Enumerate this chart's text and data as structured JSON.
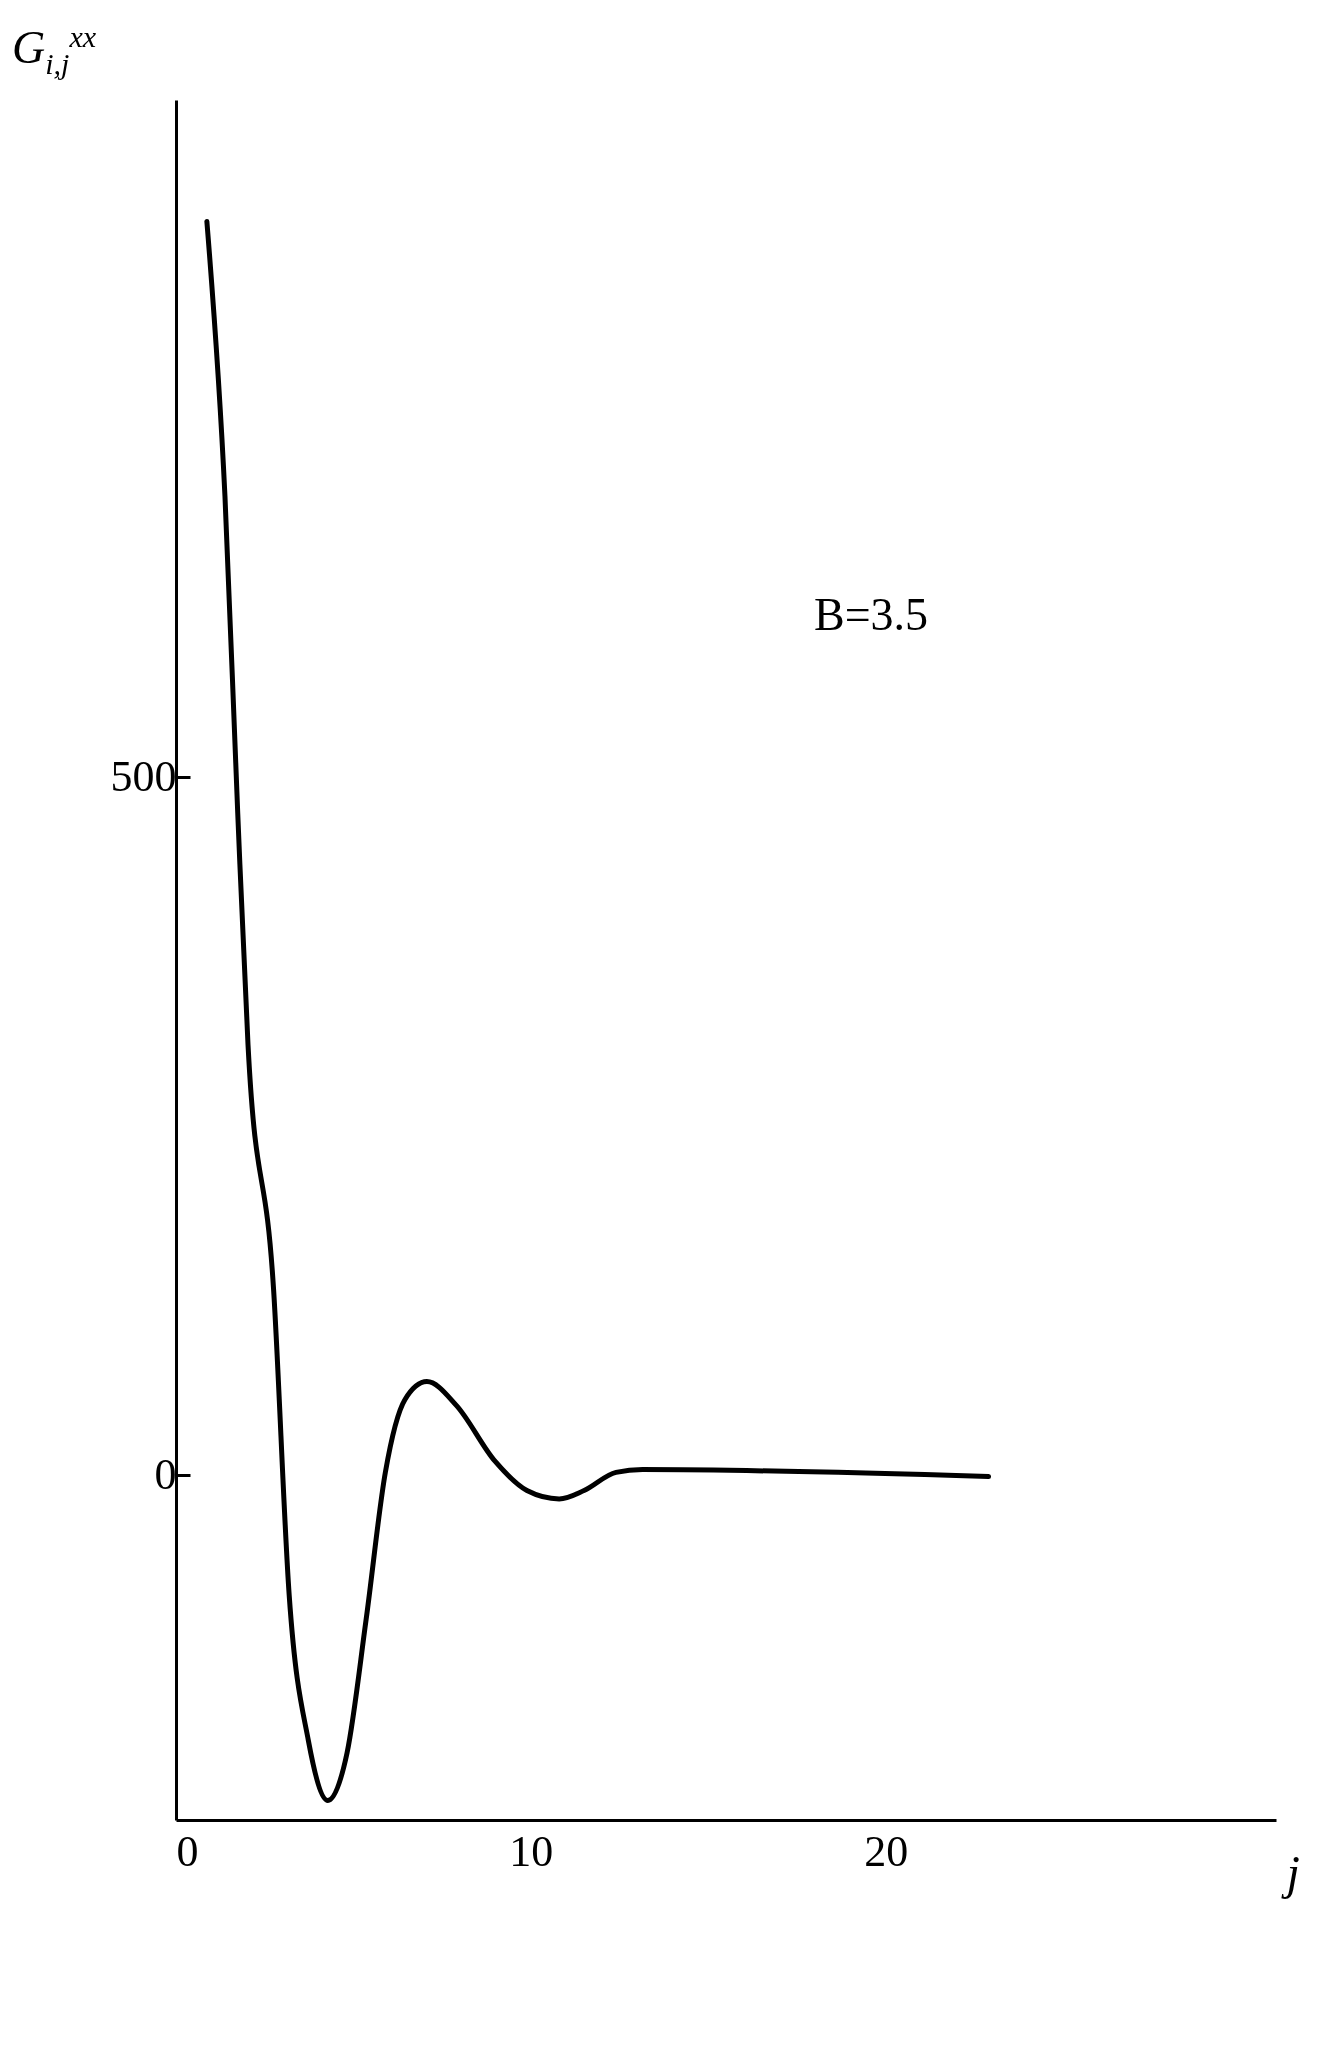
{
  "chart_data": {
    "type": "line",
    "ylabel": "G$_{i,j}$$^{xx}$",
    "xlabel": "j",
    "annotations": [
      "B=3.5"
    ],
    "xlim": [
      0,
      31
    ],
    "ylim": [
      -247,
      985
    ],
    "xticks": [
      0,
      10,
      20
    ],
    "yticks": [
      0,
      500
    ],
    "grid": false,
    "legend": false,
    "marker": "none",
    "line_style": "solid",
    "series": [
      {
        "color": "#000000",
        "x": [
          0.87,
          1.38,
          1.74,
          2.03,
          2.75,
          3.19,
          3.73,
          4.28,
          4.82,
          5.36,
          5.9,
          6.45,
          7.07,
          7.9,
          8.99,
          9.89,
          10.8,
          11.5,
          12.4,
          13.15,
          22.9
        ],
        "values": [
          898,
          701,
          474,
          308,
          133,
          -86,
          -190,
          -233,
          -199,
          -103,
          2,
          54,
          67,
          50,
          10,
          -11,
          -17,
          -11,
          2,
          4,
          -1
        ]
      }
    ]
  }
}
